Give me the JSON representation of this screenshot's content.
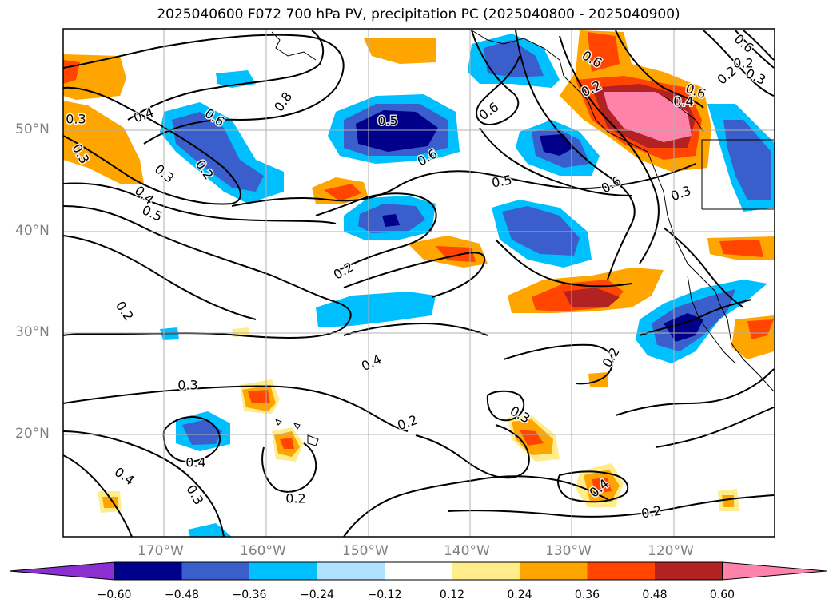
{
  "title": "2025040600 F072 700 hPa PV, precipitation PC (2025040800 - 2025040900)",
  "axes": {
    "lat_ticks": [
      "50°N",
      "40°N",
      "30°N",
      "20°N"
    ],
    "lon_ticks": [
      "170°W",
      "160°W",
      "150°W",
      "140°W",
      "130°W",
      "120°W"
    ]
  },
  "colorbar": {
    "colors": [
      "#8b2fd1",
      "#00008b",
      "#3a5fcd",
      "#00bfff",
      "#b0e2ff",
      "#ffffff",
      "#ffec8b",
      "#ffa500",
      "#ff4500",
      "#b22222",
      "#ff82ab"
    ],
    "labels": [
      "−0.60",
      "−0.48",
      "−0.36",
      "−0.24",
      "−0.12",
      "0.12",
      "0.24",
      "0.36",
      "0.48",
      "0.60"
    ]
  },
  "contour_labels": [
    "0.4",
    "0.6",
    "0.8",
    "0.5",
    "0.6",
    "0.6",
    "0.5",
    "0.3",
    "0.2",
    "0.3",
    "0.4",
    "0.5",
    "0.6",
    "0.3",
    "0.2",
    "0.6",
    "0.3",
    "0.6",
    "0.2",
    "0.2",
    "0.4",
    "0.3",
    "0.4",
    "0.2",
    "0.3",
    "0.4",
    "0.4",
    "0.3",
    "0.2",
    "0.2",
    "0.2",
    "0.4",
    "0.2",
    "0.6",
    "0.2",
    "0.3"
  ]
}
